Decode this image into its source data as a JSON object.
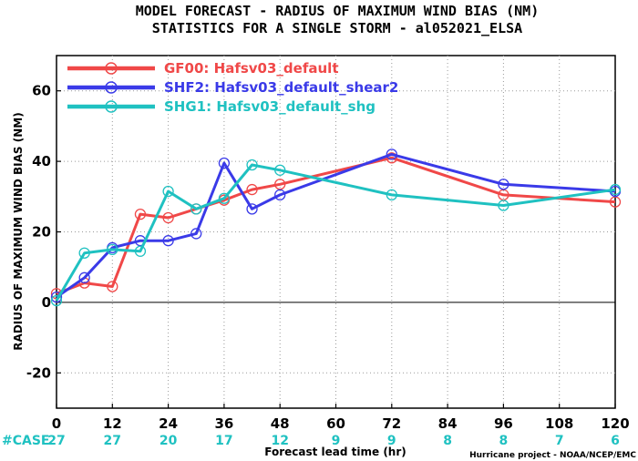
{
  "chart_data": {
    "type": "line",
    "title": "MODEL FORECAST - RADIUS OF MAXIMUM WIND BIAS (NM)",
    "subtitle": "STATISTICS FOR A SINGLE STORM - al052021_ELSA",
    "xlabel": "Forecast lead time (hr)",
    "ylabel": "RADIUS OF MAXIMUM WIND BIAS (NM)",
    "xlim": [
      0,
      120
    ],
    "ylim": [
      -30,
      70
    ],
    "xticks": [
      0,
      12,
      24,
      36,
      48,
      60,
      72,
      84,
      96,
      108,
      120
    ],
    "yticks": [
      -20,
      0,
      20,
      40,
      60
    ],
    "grid": true,
    "zero_line": true,
    "legend_position": "top-left",
    "series": [
      {
        "name": "GF00: Hafsv03_default",
        "color": "#f04848",
        "x": [
          0,
          6,
          12,
          18,
          24,
          30,
          36,
          42,
          48,
          72,
          96,
          120
        ],
        "y": [
          2.5,
          5.5,
          4.5,
          25,
          24,
          26.5,
          29,
          32,
          33.5,
          41,
          30.5,
          28.5
        ]
      },
      {
        "name": "SHF2: Hafsv03_default_shear2",
        "color": "#3a3ae8",
        "x": [
          0,
          6,
          12,
          18,
          24,
          30,
          36,
          42,
          48,
          72,
          96,
          120
        ],
        "y": [
          1.5,
          7,
          15.5,
          17.5,
          17.5,
          19.5,
          39.5,
          26.5,
          30.5,
          42,
          33.5,
          31.5
        ]
      },
      {
        "name": "SHG1: Hafsv03_default_shg",
        "color": "#1fc1c1",
        "x": [
          0,
          6,
          12,
          18,
          24,
          30,
          36,
          42,
          48,
          72,
          96,
          120
        ],
        "y": [
          0.5,
          14,
          15,
          14.5,
          31.5,
          26.5,
          29.5,
          39,
          37.5,
          30.5,
          27.5,
          32
        ]
      }
    ],
    "case_label": "#CASE",
    "cases": [
      {
        "x": 0,
        "n": "27"
      },
      {
        "x": 12,
        "n": "27"
      },
      {
        "x": 24,
        "n": "20"
      },
      {
        "x": 36,
        "n": "17"
      },
      {
        "x": 48,
        "n": "12"
      },
      {
        "x": 60,
        "n": "9"
      },
      {
        "x": 72,
        "n": "9"
      },
      {
        "x": 84,
        "n": "8"
      },
      {
        "x": 96,
        "n": "8"
      },
      {
        "x": 108,
        "n": "7"
      },
      {
        "x": 120,
        "n": "6"
      }
    ],
    "credit": "Hurricane project - NOAA/NCEP/EMC"
  }
}
